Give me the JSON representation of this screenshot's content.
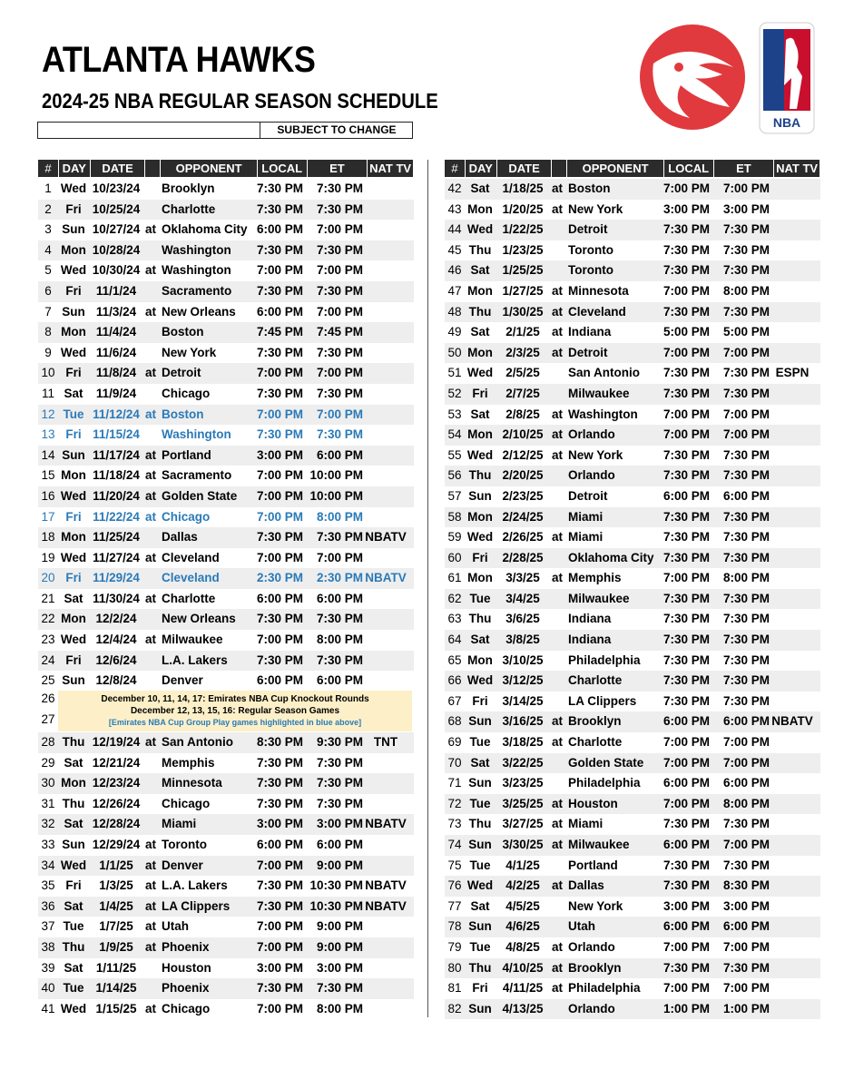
{
  "header": {
    "title": "ATLANTA HAWKS",
    "subtitle": "2024-25 NBA REGULAR SEASON SCHEDULE",
    "notice": "SUBJECT TO CHANGE",
    "logo_text": "NBA"
  },
  "columns": [
    "#",
    "DAY",
    "DATE",
    "",
    "OPPONENT",
    "LOCAL",
    "ET",
    "NAT TV"
  ],
  "colors": {
    "header_bg": "#2b2b2b",
    "cup_blue": "#2a7ab8",
    "note_bg": "#fdf0c8",
    "row_alt": "#eeeeee",
    "hawks_red": "#e03a3e"
  },
  "note": {
    "rows": [
      "26",
      "27"
    ],
    "line1": "December 10, 11, 14, 17: Emirates NBA Cup Knockout Rounds",
    "line2": "December 12, 13, 15, 16: Regular Season Games",
    "line3": "[Emirates NBA Cup Group Play games highlighted in blue above]"
  },
  "left": [
    [
      "1",
      "Wed",
      "10/23/24",
      "",
      "Brooklyn",
      "7:30 PM",
      "7:30 PM",
      "",
      0
    ],
    [
      "2",
      "Fri",
      "10/25/24",
      "",
      "Charlotte",
      "7:30 PM",
      "7:30 PM",
      "",
      0
    ],
    [
      "3",
      "Sun",
      "10/27/24",
      "at",
      "Oklahoma City",
      "6:00 PM",
      "7:00 PM",
      "",
      0
    ],
    [
      "4",
      "Mon",
      "10/28/24",
      "",
      "Washington",
      "7:30 PM",
      "7:30 PM",
      "",
      0
    ],
    [
      "5",
      "Wed",
      "10/30/24",
      "at",
      "Washington",
      "7:00 PM",
      "7:00 PM",
      "",
      0
    ],
    [
      "6",
      "Fri",
      "11/1/24",
      "",
      "Sacramento",
      "7:30 PM",
      "7:30 PM",
      "",
      0
    ],
    [
      "7",
      "Sun",
      "11/3/24",
      "at",
      "New Orleans",
      "6:00 PM",
      "7:00 PM",
      "",
      0
    ],
    [
      "8",
      "Mon",
      "11/4/24",
      "",
      "Boston",
      "7:45 PM",
      "7:45 PM",
      "",
      0
    ],
    [
      "9",
      "Wed",
      "11/6/24",
      "",
      "New York",
      "7:30 PM",
      "7:30 PM",
      "",
      0
    ],
    [
      "10",
      "Fri",
      "11/8/24",
      "at",
      "Detroit",
      "7:00 PM",
      "7:00 PM",
      "",
      0
    ],
    [
      "11",
      "Sat",
      "11/9/24",
      "",
      "Chicago",
      "7:30 PM",
      "7:30 PM",
      "",
      0
    ],
    [
      "12",
      "Tue",
      "11/12/24",
      "at",
      "Boston",
      "7:00 PM",
      "7:00 PM",
      "",
      1
    ],
    [
      "13",
      "Fri",
      "11/15/24",
      "",
      "Washington",
      "7:30 PM",
      "7:30 PM",
      "",
      1
    ],
    [
      "14",
      "Sun",
      "11/17/24",
      "at",
      "Portland",
      "3:00 PM",
      "6:00 PM",
      "",
      0
    ],
    [
      "15",
      "Mon",
      "11/18/24",
      "at",
      "Sacramento",
      "7:00 PM",
      "10:00 PM",
      "",
      0
    ],
    [
      "16",
      "Wed",
      "11/20/24",
      "at",
      "Golden State",
      "7:00 PM",
      "10:00 PM",
      "",
      0
    ],
    [
      "17",
      "Fri",
      "11/22/24",
      "at",
      "Chicago",
      "7:00 PM",
      "8:00 PM",
      "",
      1
    ],
    [
      "18",
      "Mon",
      "11/25/24",
      "",
      "Dallas",
      "7:30 PM",
      "7:30 PM",
      "NBATV",
      0
    ],
    [
      "19",
      "Wed",
      "11/27/24",
      "at",
      "Cleveland",
      "7:00 PM",
      "7:00 PM",
      "",
      0
    ],
    [
      "20",
      "Fri",
      "11/29/24",
      "",
      "Cleveland",
      "2:30 PM",
      "2:30 PM",
      "NBATV",
      1
    ],
    [
      "21",
      "Sat",
      "11/30/24",
      "at",
      "Charlotte",
      "6:00 PM",
      "6:00 PM",
      "",
      0
    ],
    [
      "22",
      "Mon",
      "12/2/24",
      "",
      "New Orleans",
      "7:30 PM",
      "7:30 PM",
      "",
      0
    ],
    [
      "23",
      "Wed",
      "12/4/24",
      "at",
      "Milwaukee",
      "7:00 PM",
      "8:00 PM",
      "",
      0
    ],
    [
      "24",
      "Fri",
      "12/6/24",
      "",
      "L.A. Lakers",
      "7:30 PM",
      "7:30 PM",
      "",
      0
    ],
    [
      "25",
      "Sun",
      "12/8/24",
      "",
      "Denver",
      "6:00 PM",
      "6:00 PM",
      "",
      0
    ],
    null,
    null,
    [
      "28",
      "Thu",
      "12/19/24",
      "at",
      "San Antonio",
      "8:30 PM",
      "9:30 PM",
      "TNT",
      0
    ],
    [
      "29",
      "Sat",
      "12/21/24",
      "",
      "Memphis",
      "7:30 PM",
      "7:30 PM",
      "",
      0
    ],
    [
      "30",
      "Mon",
      "12/23/24",
      "",
      "Minnesota",
      "7:30 PM",
      "7:30 PM",
      "",
      0
    ],
    [
      "31",
      "Thu",
      "12/26/24",
      "",
      "Chicago",
      "7:30 PM",
      "7:30 PM",
      "",
      0
    ],
    [
      "32",
      "Sat",
      "12/28/24",
      "",
      "Miami",
      "3:00 PM",
      "3:00 PM",
      "NBATV",
      0
    ],
    [
      "33",
      "Sun",
      "12/29/24",
      "at",
      "Toronto",
      "6:00 PM",
      "6:00 PM",
      "",
      0
    ],
    [
      "34",
      "Wed",
      "1/1/25",
      "at",
      "Denver",
      "7:00 PM",
      "9:00 PM",
      "",
      0
    ],
    [
      "35",
      "Fri",
      "1/3/25",
      "at",
      "L.A. Lakers",
      "7:30 PM",
      "10:30 PM",
      "NBATV",
      0
    ],
    [
      "36",
      "Sat",
      "1/4/25",
      "at",
      "LA Clippers",
      "7:30 PM",
      "10:30 PM",
      "NBATV",
      0
    ],
    [
      "37",
      "Tue",
      "1/7/25",
      "at",
      "Utah",
      "7:00 PM",
      "9:00 PM",
      "",
      0
    ],
    [
      "38",
      "Thu",
      "1/9/25",
      "at",
      "Phoenix",
      "7:00 PM",
      "9:00 PM",
      "",
      0
    ],
    [
      "39",
      "Sat",
      "1/11/25",
      "",
      "Houston",
      "3:00 PM",
      "3:00 PM",
      "",
      0
    ],
    [
      "40",
      "Tue",
      "1/14/25",
      "",
      "Phoenix",
      "7:30 PM",
      "7:30 PM",
      "",
      0
    ],
    [
      "41",
      "Wed",
      "1/15/25",
      "at",
      "Chicago",
      "7:00 PM",
      "8:00 PM",
      "",
      0
    ]
  ],
  "right": [
    [
      "42",
      "Sat",
      "1/18/25",
      "at",
      "Boston",
      "7:00 PM",
      "7:00 PM",
      "",
      0
    ],
    [
      "43",
      "Mon",
      "1/20/25",
      "at",
      "New York",
      "3:00 PM",
      "3:00 PM",
      "",
      0
    ],
    [
      "44",
      "Wed",
      "1/22/25",
      "",
      "Detroit",
      "7:30 PM",
      "7:30 PM",
      "",
      0
    ],
    [
      "45",
      "Thu",
      "1/23/25",
      "",
      "Toronto",
      "7:30 PM",
      "7:30 PM",
      "",
      0
    ],
    [
      "46",
      "Sat",
      "1/25/25",
      "",
      "Toronto",
      "7:30 PM",
      "7:30 PM",
      "",
      0
    ],
    [
      "47",
      "Mon",
      "1/27/25",
      "at",
      "Minnesota",
      "7:00 PM",
      "8:00 PM",
      "",
      0
    ],
    [
      "48",
      "Thu",
      "1/30/25",
      "at",
      "Cleveland",
      "7:30 PM",
      "7:30 PM",
      "",
      0
    ],
    [
      "49",
      "Sat",
      "2/1/25",
      "at",
      "Indiana",
      "5:00 PM",
      "5:00 PM",
      "",
      0
    ],
    [
      "50",
      "Mon",
      "2/3/25",
      "at",
      "Detroit",
      "7:00 PM",
      "7:00 PM",
      "",
      0
    ],
    [
      "51",
      "Wed",
      "2/5/25",
      "",
      "San Antonio",
      "7:30 PM",
      "7:30 PM",
      "ESPN",
      0
    ],
    [
      "52",
      "Fri",
      "2/7/25",
      "",
      "Milwaukee",
      "7:30 PM",
      "7:30 PM",
      "",
      0
    ],
    [
      "53",
      "Sat",
      "2/8/25",
      "at",
      "Washington",
      "7:00 PM",
      "7:00 PM",
      "",
      0
    ],
    [
      "54",
      "Mon",
      "2/10/25",
      "at",
      "Orlando",
      "7:00 PM",
      "7:00 PM",
      "",
      0
    ],
    [
      "55",
      "Wed",
      "2/12/25",
      "at",
      "New York",
      "7:30 PM",
      "7:30 PM",
      "",
      0
    ],
    [
      "56",
      "Thu",
      "2/20/25",
      "",
      "Orlando",
      "7:30 PM",
      "7:30 PM",
      "",
      0
    ],
    [
      "57",
      "Sun",
      "2/23/25",
      "",
      "Detroit",
      "6:00 PM",
      "6:00 PM",
      "",
      0
    ],
    [
      "58",
      "Mon",
      "2/24/25",
      "",
      "Miami",
      "7:30 PM",
      "7:30 PM",
      "",
      0
    ],
    [
      "59",
      "Wed",
      "2/26/25",
      "at",
      "Miami",
      "7:30 PM",
      "7:30 PM",
      "",
      0
    ],
    [
      "60",
      "Fri",
      "2/28/25",
      "",
      "Oklahoma City",
      "7:30 PM",
      "7:30 PM",
      "",
      0
    ],
    [
      "61",
      "Mon",
      "3/3/25",
      "at",
      "Memphis",
      "7:00 PM",
      "8:00 PM",
      "",
      0
    ],
    [
      "62",
      "Tue",
      "3/4/25",
      "",
      "Milwaukee",
      "7:30 PM",
      "7:30 PM",
      "",
      0
    ],
    [
      "63",
      "Thu",
      "3/6/25",
      "",
      "Indiana",
      "7:30 PM",
      "7:30 PM",
      "",
      0
    ],
    [
      "64",
      "Sat",
      "3/8/25",
      "",
      "Indiana",
      "7:30 PM",
      "7:30 PM",
      "",
      0
    ],
    [
      "65",
      "Mon",
      "3/10/25",
      "",
      "Philadelphia",
      "7:30 PM",
      "7:30 PM",
      "",
      0
    ],
    [
      "66",
      "Wed",
      "3/12/25",
      "",
      "Charlotte",
      "7:30 PM",
      "7:30 PM",
      "",
      0
    ],
    [
      "67",
      "Fri",
      "3/14/25",
      "",
      "LA Clippers",
      "7:30 PM",
      "7:30 PM",
      "",
      0
    ],
    [
      "68",
      "Sun",
      "3/16/25",
      "at",
      "Brooklyn",
      "6:00 PM",
      "6:00 PM",
      "NBATV",
      0
    ],
    [
      "69",
      "Tue",
      "3/18/25",
      "at",
      "Charlotte",
      "7:00 PM",
      "7:00 PM",
      "",
      0
    ],
    [
      "70",
      "Sat",
      "3/22/25",
      "",
      "Golden State",
      "7:00 PM",
      "7:00 PM",
      "",
      0
    ],
    [
      "71",
      "Sun",
      "3/23/25",
      "",
      "Philadelphia",
      "6:00 PM",
      "6:00 PM",
      "",
      0
    ],
    [
      "72",
      "Tue",
      "3/25/25",
      "at",
      "Houston",
      "7:00 PM",
      "8:00 PM",
      "",
      0
    ],
    [
      "73",
      "Thu",
      "3/27/25",
      "at",
      "Miami",
      "7:30 PM",
      "7:30 PM",
      "",
      0
    ],
    [
      "74",
      "Sun",
      "3/30/25",
      "at",
      "Milwaukee",
      "6:00 PM",
      "7:00 PM",
      "",
      0
    ],
    [
      "75",
      "Tue",
      "4/1/25",
      "",
      "Portland",
      "7:30 PM",
      "7:30 PM",
      "",
      0
    ],
    [
      "76",
      "Wed",
      "4/2/25",
      "at",
      "Dallas",
      "7:30 PM",
      "8:30 PM",
      "",
      0
    ],
    [
      "77",
      "Sat",
      "4/5/25",
      "",
      "New York",
      "3:00 PM",
      "3:00 PM",
      "",
      0
    ],
    [
      "78",
      "Sun",
      "4/6/25",
      "",
      "Utah",
      "6:00 PM",
      "6:00 PM",
      "",
      0
    ],
    [
      "79",
      "Tue",
      "4/8/25",
      "at",
      "Orlando",
      "7:00 PM",
      "7:00 PM",
      "",
      0
    ],
    [
      "80",
      "Thu",
      "4/10/25",
      "at",
      "Brooklyn",
      "7:30 PM",
      "7:30 PM",
      "",
      0
    ],
    [
      "81",
      "Fri",
      "4/11/25",
      "at",
      "Philadelphia",
      "7:00 PM",
      "7:00 PM",
      "",
      0
    ],
    [
      "82",
      "Sun",
      "4/13/25",
      "",
      "Orlando",
      "1:00 PM",
      "1:00 PM",
      "",
      0
    ]
  ]
}
